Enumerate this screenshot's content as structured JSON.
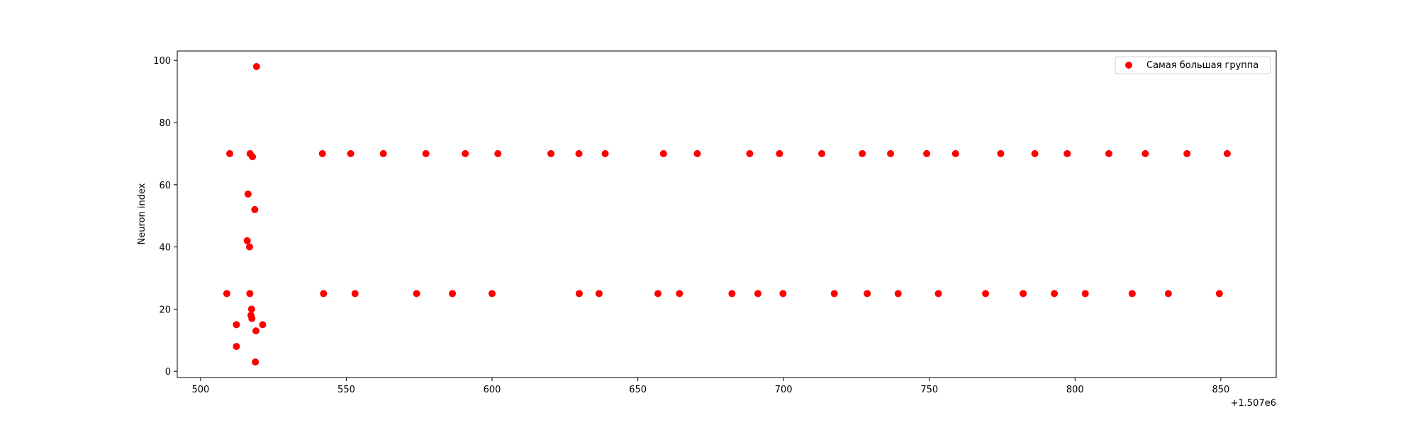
{
  "chart_data": {
    "type": "scatter",
    "title": "",
    "xlabel": "",
    "ylabel": "Neuron index",
    "x_offset_label": "+1.507e6",
    "xlim": [
      492,
      869
    ],
    "ylim": [
      -2,
      103
    ],
    "xticks": [
      500,
      550,
      600,
      650,
      700,
      750,
      800,
      850
    ],
    "yticks": [
      0,
      20,
      40,
      60,
      80,
      100
    ],
    "grid": false,
    "legend_position": "top-right",
    "series": [
      {
        "name": "Самая большая группа",
        "color": "#ff0000",
        "points": [
          [
            509,
            25
          ],
          [
            510,
            70
          ],
          [
            512.3,
            15
          ],
          [
            512.3,
            8
          ],
          [
            516,
            42
          ],
          [
            516.3,
            57
          ],
          [
            516.8,
            40
          ],
          [
            516.9,
            25
          ],
          [
            517,
            70
          ],
          [
            517.3,
            18
          ],
          [
            517.5,
            20
          ],
          [
            517.6,
            17
          ],
          [
            517.8,
            69
          ],
          [
            518.6,
            52
          ],
          [
            518.8,
            3
          ],
          [
            519,
            13
          ],
          [
            519.2,
            98
          ],
          [
            521.3,
            15
          ],
          [
            541.8,
            70
          ],
          [
            542.2,
            25
          ],
          [
            551.5,
            70
          ],
          [
            553,
            25
          ],
          [
            562.7,
            70
          ],
          [
            574.1,
            25
          ],
          [
            577.3,
            70
          ],
          [
            586.4,
            25
          ],
          [
            590.8,
            70
          ],
          [
            600,
            25
          ],
          [
            602,
            70
          ],
          [
            620.2,
            70
          ],
          [
            629.8,
            70
          ],
          [
            629.9,
            25
          ],
          [
            636.7,
            25
          ],
          [
            638.8,
            70
          ],
          [
            656.9,
            25
          ],
          [
            658.8,
            70
          ],
          [
            664.3,
            25
          ],
          [
            670.4,
            70
          ],
          [
            682.3,
            25
          ],
          [
            688.4,
            70
          ],
          [
            691.2,
            25
          ],
          [
            698.6,
            70
          ],
          [
            699.8,
            25
          ],
          [
            713.1,
            70
          ],
          [
            717.4,
            25
          ],
          [
            727,
            70
          ],
          [
            728.7,
            25
          ],
          [
            736.7,
            70
          ],
          [
            739.3,
            25
          ],
          [
            749.1,
            70
          ],
          [
            753.1,
            25
          ],
          [
            759,
            70
          ],
          [
            769.3,
            25
          ],
          [
            774.5,
            70
          ],
          [
            782.2,
            25
          ],
          [
            786.2,
            70
          ],
          [
            792.9,
            25
          ],
          [
            797.3,
            70
          ],
          [
            803.5,
            25
          ],
          [
            811.6,
            70
          ],
          [
            819.6,
            25
          ],
          [
            824.1,
            70
          ],
          [
            832,
            25
          ],
          [
            838.4,
            70
          ],
          [
            849.5,
            25
          ],
          [
            852.2,
            70
          ]
        ]
      }
    ]
  }
}
